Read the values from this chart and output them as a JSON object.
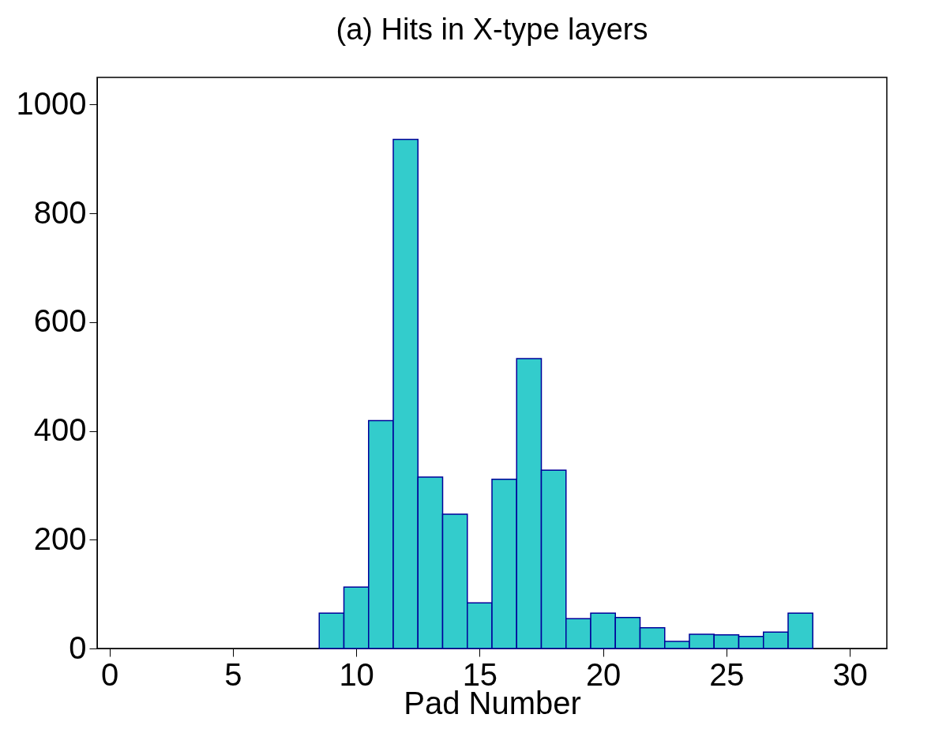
{
  "chart_data": {
    "type": "histogram",
    "title": "(a) Hits in X-type layers",
    "xlabel": "Pad Number",
    "bins": [
      8.5,
      9.5,
      10.5,
      11.5,
      12.5,
      13.5,
      14.5,
      15.5,
      16.5,
      17.5,
      18.5,
      19.5,
      20.5,
      21.5,
      22.5,
      23.5,
      24.5,
      25.5,
      26.5,
      27.5,
      28.5
    ],
    "values": [
      65,
      113,
      419,
      936,
      315,
      247,
      84,
      311,
      533,
      328,
      55,
      65,
      57,
      38,
      13,
      26,
      25,
      22,
      30,
      65
    ],
    "color": "#33cccc",
    "xlim": [
      -0.5,
      31.5
    ],
    "xticks": [
      0,
      5,
      10,
      15,
      20,
      25,
      30
    ],
    "ylim": [
      0,
      1050
    ],
    "yticks": [
      0,
      200,
      400,
      600,
      800,
      1000
    ]
  }
}
